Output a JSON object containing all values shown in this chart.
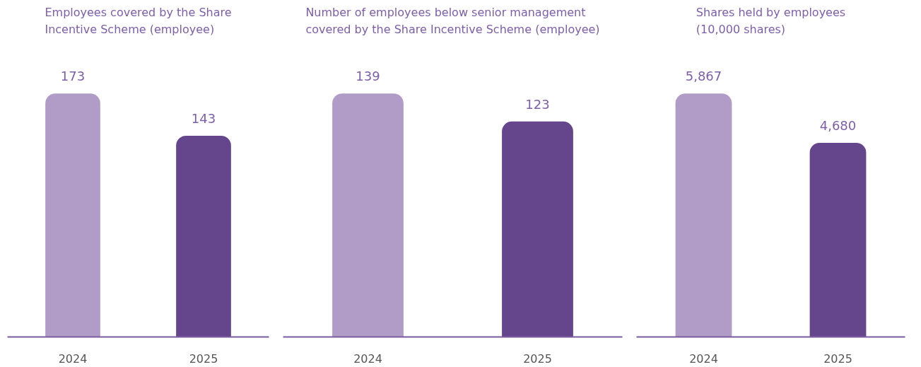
{
  "chart_data": [
    {
      "type": "bar",
      "title": "Employees covered by the Share\nIncentive Scheme (employee)",
      "categories": [
        "2024",
        "2025"
      ],
      "values": [
        173,
        143
      ],
      "value_labels": [
        "173",
        "143"
      ],
      "colors": [
        "#b19cc8",
        "#65468d"
      ],
      "tick_labels": "x"
    },
    {
      "type": "bar",
      "title": "Number of employees below senior management\ncovered by the Share Incentive Scheme (employee)",
      "categories": [
        "2024",
        "2025"
      ],
      "values": [
        139,
        123
      ],
      "value_labels": [
        "139",
        "123"
      ],
      "colors": [
        "#b19cc8",
        "#65468d"
      ],
      "tick_labels": "x"
    },
    {
      "type": "bar",
      "title": "Shares held by employees\n(10,000 shares)",
      "categories": [
        "2024",
        "2025"
      ],
      "values": [
        5867,
        4680
      ],
      "value_labels": [
        "5,867",
        "4,680"
      ],
      "colors": [
        "#b19cc8",
        "#65468d"
      ],
      "tick_labels": "x"
    }
  ]
}
